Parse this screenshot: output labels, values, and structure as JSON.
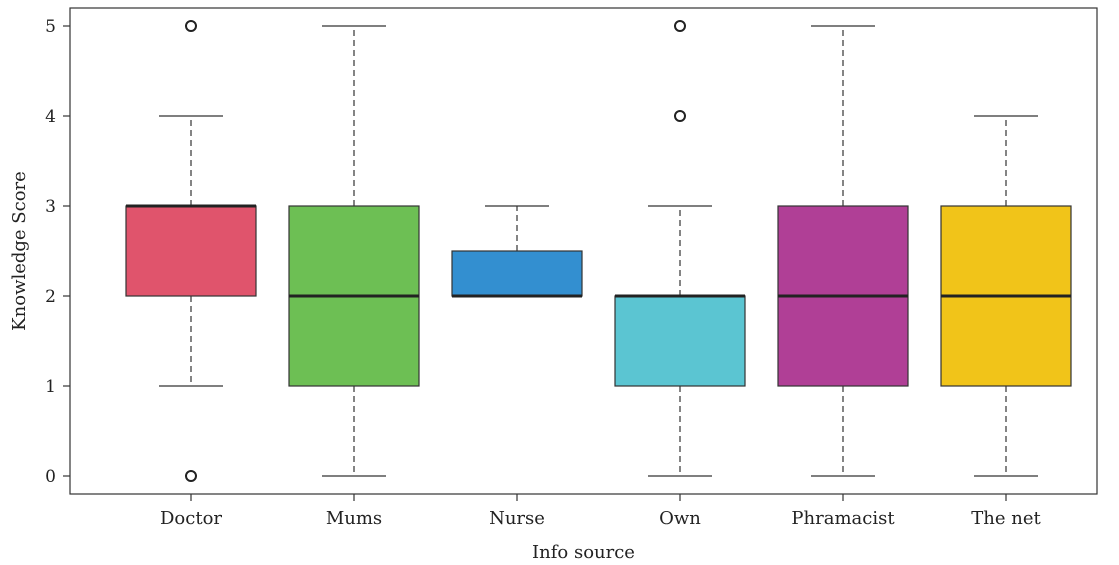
{
  "chart_data": {
    "type": "boxplot",
    "xlabel": "Info source",
    "ylabel": "Knowledge Score",
    "ylim": [
      0,
      5
    ],
    "yticks": [
      "0",
      "1",
      "2",
      "3",
      "4",
      "5"
    ],
    "categories": [
      "Doctor",
      "Mums",
      "Nurse",
      "Own",
      "Phramacist",
      "The net"
    ],
    "boxes": [
      {
        "category": "Doctor",
        "whisker_low": 1,
        "q1": 2,
        "median": 3,
        "q3": 3,
        "whisker_high": 4,
        "outliers": [
          0,
          5
        ],
        "color": "#e0546c"
      },
      {
        "category": "Mums",
        "whisker_low": 0,
        "q1": 1,
        "median": 2,
        "q3": 3,
        "whisker_high": 5,
        "outliers": [],
        "color": "#6dbf54"
      },
      {
        "category": "Nurse",
        "whisker_low": 2,
        "q1": 2,
        "median": 2,
        "q3": 2.5,
        "whisker_high": 3,
        "outliers": [],
        "color": "#338fd0"
      },
      {
        "category": "Own",
        "whisker_low": 0,
        "q1": 1,
        "median": 2,
        "q3": 2,
        "whisker_high": 3,
        "outliers": [
          4,
          5
        ],
        "color": "#5bc5d2"
      },
      {
        "category": "Phramacist",
        "whisker_low": 0,
        "q1": 1,
        "median": 2,
        "q3": 3,
        "whisker_high": 5,
        "outliers": [],
        "color": "#b03f96"
      },
      {
        "category": "The net",
        "whisker_low": 0,
        "q1": 1,
        "median": 2,
        "q3": 3,
        "whisker_high": 4,
        "outliers": [],
        "color": "#f1c419"
      }
    ],
    "grid": false,
    "legend": "none"
  }
}
